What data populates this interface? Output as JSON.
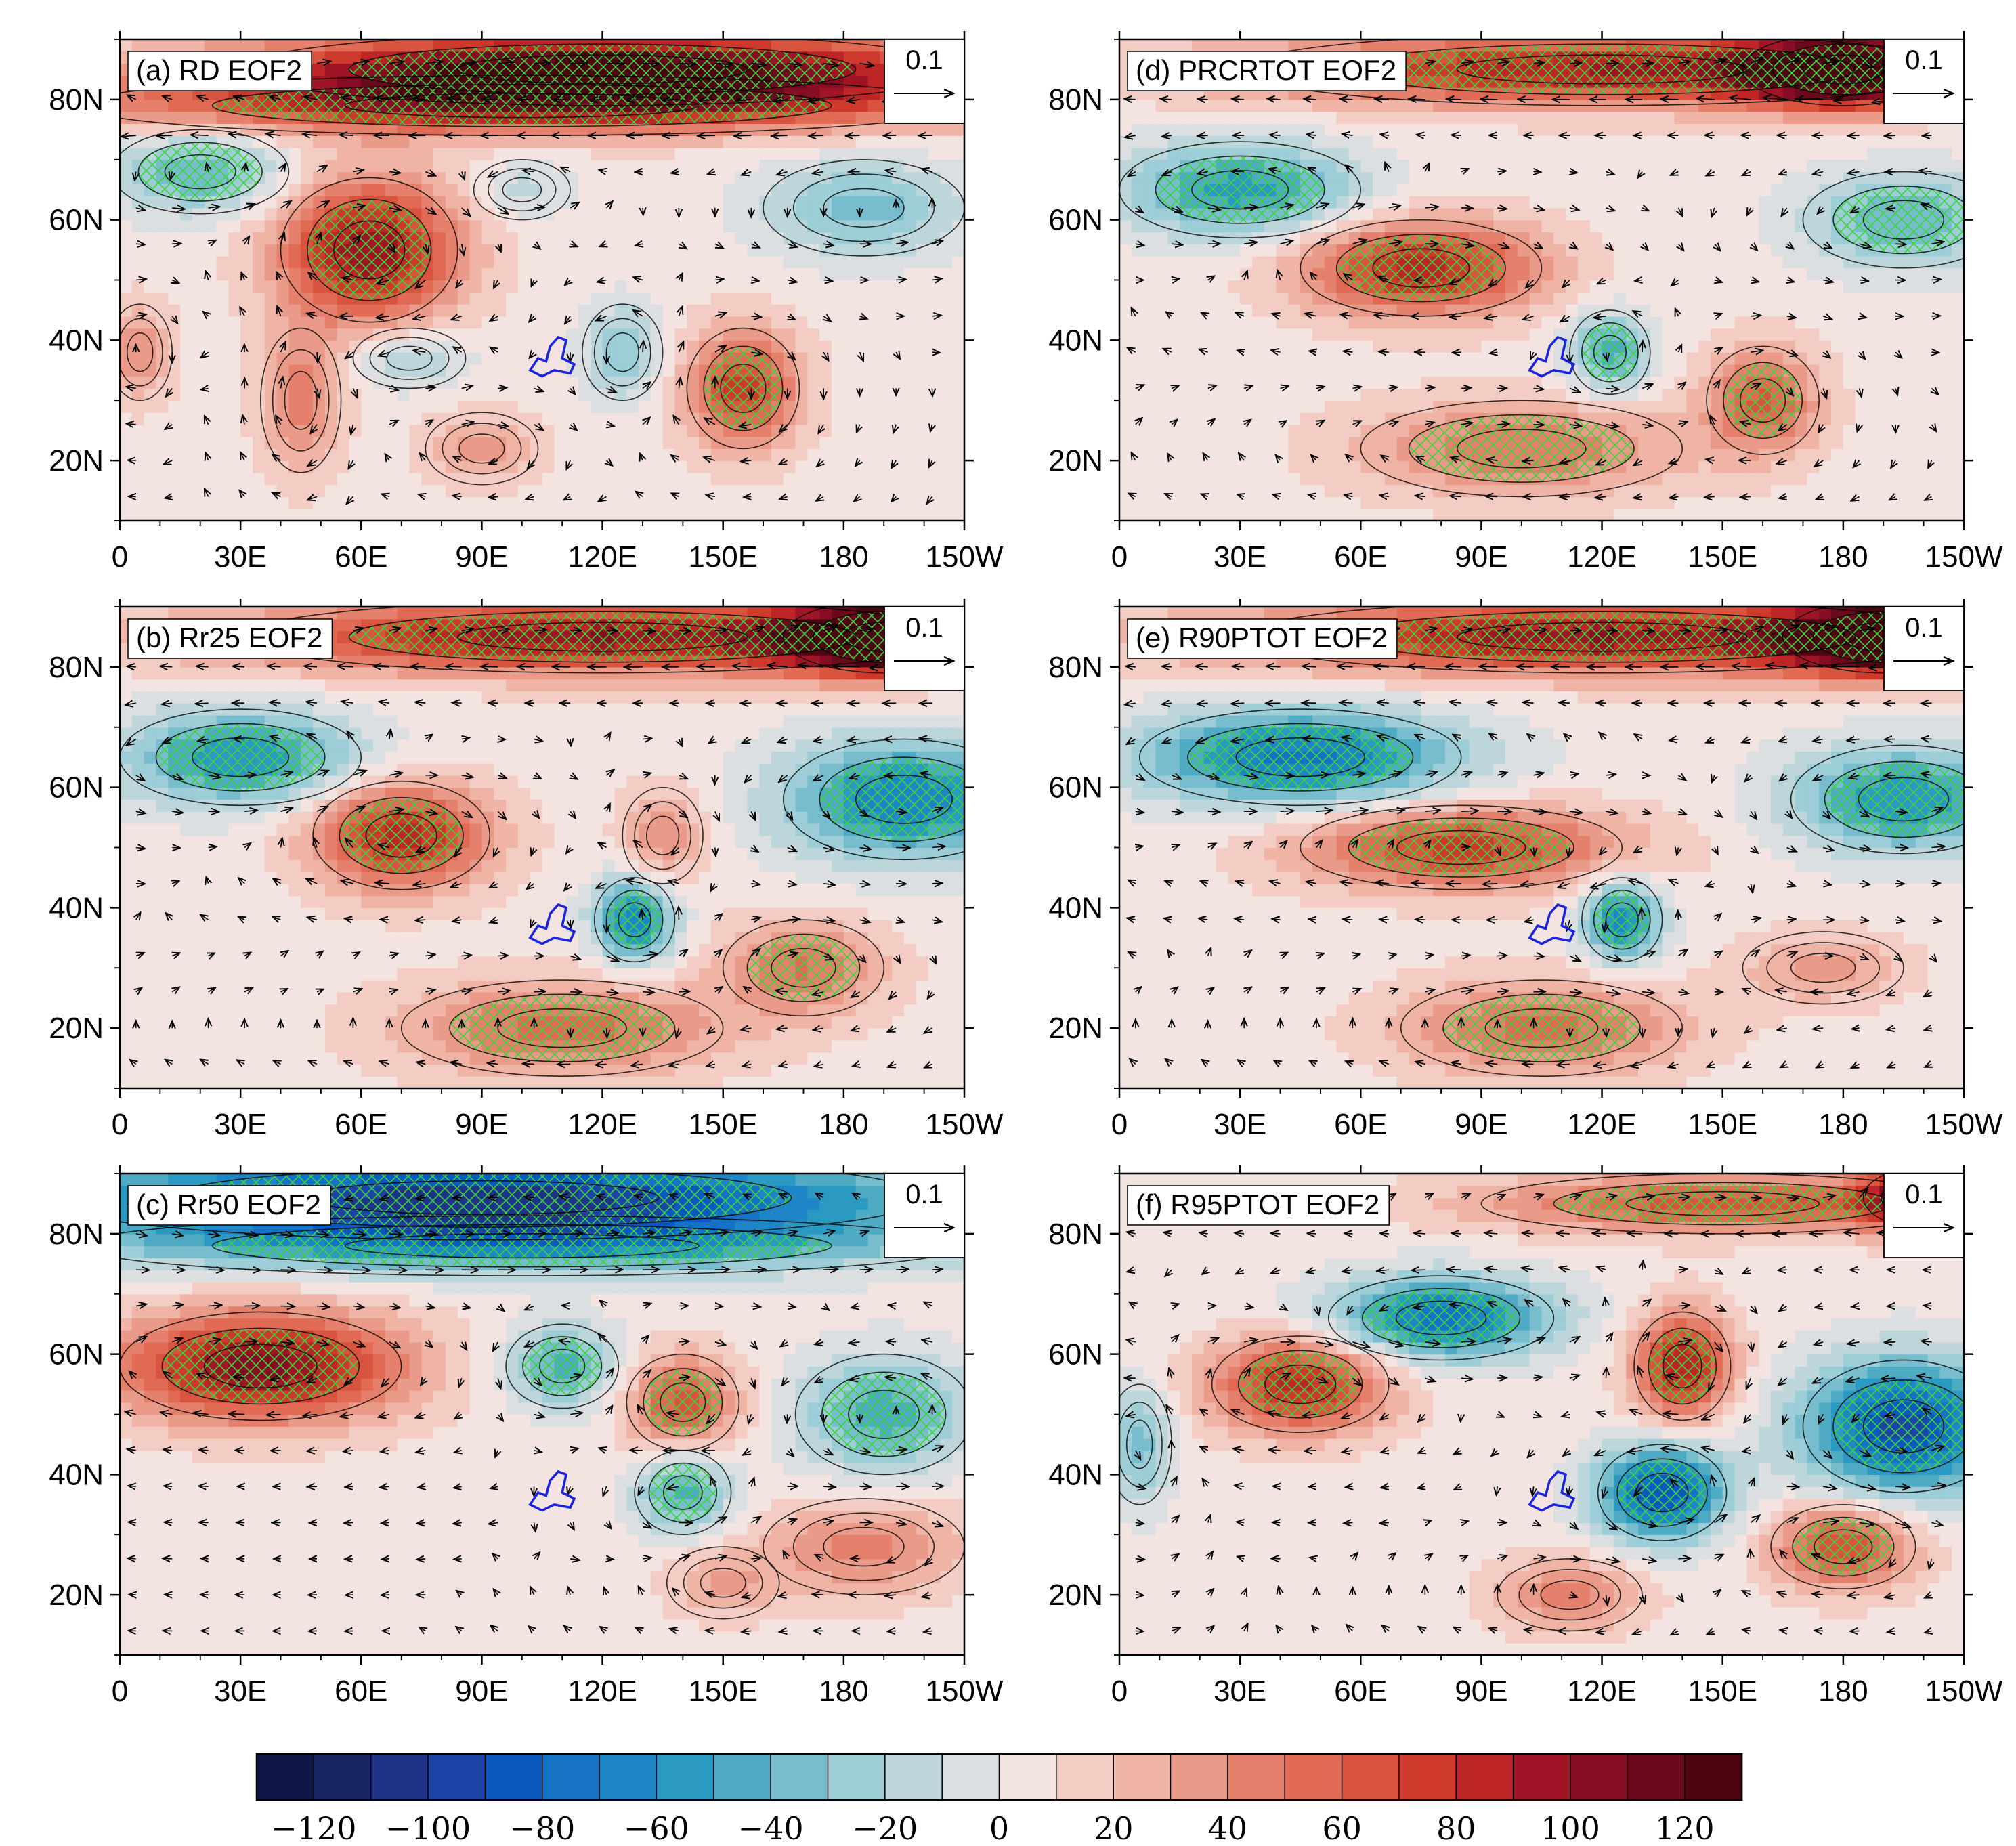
{
  "figure": {
    "description_free": true
  },
  "colorbar": {
    "levels": [
      -130,
      -120,
      -110,
      -100,
      -90,
      -80,
      -70,
      -60,
      -50,
      -40,
      -30,
      -20,
      -10,
      0,
      10,
      20,
      30,
      40,
      50,
      60,
      70,
      80,
      90,
      100,
      110,
      120,
      130
    ],
    "colors": [
      "#0f1647",
      "#1a2566",
      "#1f3388",
      "#1c44a8",
      "#0c58c1",
      "#1572c7",
      "#1e86c6",
      "#2a9ac3",
      "#4fabc4",
      "#78bdcd",
      "#9dcdd6",
      "#bdd6db",
      "#dcdfe1",
      "#f3e3e1",
      "#f3cdc4",
      "#efb4a6",
      "#ea9a88",
      "#e5806c",
      "#e06a54",
      "#d9543e",
      "#cd3a2b",
      "#bd2526",
      "#a01526",
      "#860d24",
      "#6a0a1c",
      "#4d0512"
    ],
    "tick_labels": [
      "−120",
      "−100",
      "−80",
      "−60",
      "−40",
      "−20",
      "0",
      "20",
      "40",
      "60",
      "80",
      "100",
      "120"
    ],
    "tick_values": [
      -120,
      -100,
      -80,
      -60,
      -40,
      -20,
      0,
      20,
      40,
      60,
      80,
      100,
      120
    ]
  },
  "axes": {
    "lon_ticks": [
      "0",
      "30E",
      "60E",
      "90E",
      "120E",
      "150E",
      "180",
      "150W"
    ],
    "lon_values": [
      0,
      30,
      60,
      90,
      120,
      150,
      180,
      210
    ],
    "lat_ticks": [
      "20N",
      "40N",
      "60N",
      "80N"
    ],
    "lat_values": [
      20,
      40,
      60,
      80
    ],
    "lon_range": [
      0,
      210
    ],
    "lat_range": [
      10,
      90
    ]
  },
  "chart_data": [
    {
      "type": "heatmap",
      "panel": "a",
      "title": "(a) RD EOF2",
      "ref_vector": "0.1",
      "anomalies": [
        {
          "lon": 120,
          "lat": 85,
          "value": 125,
          "r_lon": 90,
          "r_lat": 6
        },
        {
          "lon": 100,
          "lat": 79,
          "value": 70,
          "r_lon": 110,
          "r_lat": 5
        },
        {
          "lon": 20,
          "lat": 68,
          "value": -45,
          "r_lon": 22,
          "r_lat": 7
        },
        {
          "lon": 100,
          "lat": 65,
          "value": -20,
          "r_lon": 12,
          "r_lat": 5
        },
        {
          "lon": 185,
          "lat": 62,
          "value": -40,
          "r_lon": 25,
          "r_lat": 8
        },
        {
          "lon": 62,
          "lat": 55,
          "value": 95,
          "r_lon": 22,
          "r_lat": 12
        },
        {
          "lon": 45,
          "lat": 30,
          "value": 40,
          "r_lon": 10,
          "r_lat": 12
        },
        {
          "lon": 72,
          "lat": 37,
          "value": -30,
          "r_lon": 14,
          "r_lat": 5
        },
        {
          "lon": 125,
          "lat": 38,
          "value": -35,
          "r_lon": 10,
          "r_lat": 8
        },
        {
          "lon": 155,
          "lat": 32,
          "value": 70,
          "r_lon": 14,
          "r_lat": 10
        },
        {
          "lon": 90,
          "lat": 22,
          "value": 30,
          "r_lon": 14,
          "r_lat": 6
        },
        {
          "lon": 5,
          "lat": 38,
          "value": 35,
          "r_lon": 8,
          "r_lat": 8
        }
      ]
    },
    {
      "type": "heatmap",
      "panel": "b",
      "title": "(b) Rr25 EOF2",
      "ref_vector": "0.1",
      "anomalies": [
        {
          "lon": 120,
          "lat": 85,
          "value": 95,
          "r_lon": 90,
          "r_lat": 6
        },
        {
          "lon": 190,
          "lat": 85,
          "value": 130,
          "r_lon": 25,
          "r_lat": 6
        },
        {
          "lon": 30,
          "lat": 65,
          "value": -65,
          "r_lon": 30,
          "r_lat": 8
        },
        {
          "lon": 195,
          "lat": 58,
          "value": -75,
          "r_lon": 30,
          "r_lat": 10
        },
        {
          "lon": 70,
          "lat": 52,
          "value": 80,
          "r_lon": 22,
          "r_lat": 9
        },
        {
          "lon": 135,
          "lat": 52,
          "value": 35,
          "r_lon": 10,
          "r_lat": 8
        },
        {
          "lon": 128,
          "lat": 38,
          "value": -75,
          "r_lon": 10,
          "r_lat": 7
        },
        {
          "lon": 110,
          "lat": 20,
          "value": 50,
          "r_lon": 40,
          "r_lat": 8
        },
        {
          "lon": 170,
          "lat": 30,
          "value": 45,
          "r_lon": 20,
          "r_lat": 8
        }
      ]
    },
    {
      "type": "heatmap",
      "panel": "c",
      "title": "(c) Rr50 EOF2",
      "ref_vector": "0.1",
      "anomalies": [
        {
          "lon": 90,
          "lat": 86,
          "value": -110,
          "r_lon": 110,
          "r_lat": 7
        },
        {
          "lon": 100,
          "lat": 78,
          "value": -50,
          "r_lon": 110,
          "r_lat": 5
        },
        {
          "lon": 35,
          "lat": 58,
          "value": 100,
          "r_lon": 35,
          "r_lat": 9
        },
        {
          "lon": 110,
          "lat": 58,
          "value": -50,
          "r_lon": 14,
          "r_lat": 7
        },
        {
          "lon": 140,
          "lat": 52,
          "value": 60,
          "r_lon": 14,
          "r_lat": 8
        },
        {
          "lon": 190,
          "lat": 50,
          "value": -50,
          "r_lon": 22,
          "r_lat": 10
        },
        {
          "lon": 140,
          "lat": 37,
          "value": -50,
          "r_lon": 12,
          "r_lat": 7
        },
        {
          "lon": 185,
          "lat": 28,
          "value": 40,
          "r_lon": 25,
          "r_lat": 8
        },
        {
          "lon": 150,
          "lat": 22,
          "value": 25,
          "r_lon": 14,
          "r_lat": 6
        }
      ]
    },
    {
      "type": "heatmap",
      "panel": "d",
      "title": "(d) PRCRTOT EOF2",
      "ref_vector": "0.1",
      "anomalies": [
        {
          "lon": 120,
          "lat": 85,
          "value": 85,
          "r_lon": 90,
          "r_lat": 6
        },
        {
          "lon": 180,
          "lat": 85,
          "value": 125,
          "r_lon": 25,
          "r_lat": 6
        },
        {
          "lon": 30,
          "lat": 65,
          "value": -60,
          "r_lon": 30,
          "r_lat": 8
        },
        {
          "lon": 195,
          "lat": 60,
          "value": -45,
          "r_lon": 25,
          "r_lat": 8
        },
        {
          "lon": 75,
          "lat": 52,
          "value": 80,
          "r_lon": 30,
          "r_lat": 8
        },
        {
          "lon": 122,
          "lat": 38,
          "value": -50,
          "r_lon": 10,
          "r_lat": 7
        },
        {
          "lon": 100,
          "lat": 22,
          "value": 45,
          "r_lon": 40,
          "r_lat": 8
        },
        {
          "lon": 160,
          "lat": 30,
          "value": 55,
          "r_lon": 14,
          "r_lat": 9
        }
      ]
    },
    {
      "type": "heatmap",
      "panel": "e",
      "title": "(e) R90PTOT EOF2",
      "ref_vector": "0.1",
      "anomalies": [
        {
          "lon": 120,
          "lat": 85,
          "value": 95,
          "r_lon": 90,
          "r_lat": 6
        },
        {
          "lon": 190,
          "lat": 85,
          "value": 130,
          "r_lon": 25,
          "r_lat": 6
        },
        {
          "lon": 45,
          "lat": 65,
          "value": -80,
          "r_lon": 40,
          "r_lat": 8
        },
        {
          "lon": 195,
          "lat": 58,
          "value": -65,
          "r_lon": 28,
          "r_lat": 9
        },
        {
          "lon": 85,
          "lat": 50,
          "value": 70,
          "r_lon": 40,
          "r_lat": 7
        },
        {
          "lon": 125,
          "lat": 38,
          "value": -70,
          "r_lon": 10,
          "r_lat": 7
        },
        {
          "lon": 105,
          "lat": 20,
          "value": 50,
          "r_lon": 35,
          "r_lat": 8
        },
        {
          "lon": 175,
          "lat": 30,
          "value": 30,
          "r_lon": 20,
          "r_lat": 6
        }
      ]
    },
    {
      "type": "heatmap",
      "panel": "f",
      "title": "(f) R95PTOT EOF2",
      "ref_vector": "0.1",
      "anomalies": [
        {
          "lon": 150,
          "lat": 85,
          "value": 60,
          "r_lon": 60,
          "r_lat": 5
        },
        {
          "lon": 200,
          "lat": 86,
          "value": 100,
          "r_lon": 15,
          "r_lat": 5
        },
        {
          "lon": 80,
          "lat": 66,
          "value": -80,
          "r_lon": 28,
          "r_lat": 7
        },
        {
          "lon": 45,
          "lat": 55,
          "value": 80,
          "r_lon": 22,
          "r_lat": 8
        },
        {
          "lon": 140,
          "lat": 58,
          "value": 85,
          "r_lon": 12,
          "r_lat": 9
        },
        {
          "lon": 195,
          "lat": 48,
          "value": -100,
          "r_lon": 25,
          "r_lat": 11
        },
        {
          "lon": 135,
          "lat": 37,
          "value": -95,
          "r_lon": 16,
          "r_lat": 8
        },
        {
          "lon": 180,
          "lat": 28,
          "value": 65,
          "r_lon": 18,
          "r_lat": 7
        },
        {
          "lon": 112,
          "lat": 20,
          "value": 40,
          "r_lon": 18,
          "r_lat": 6
        },
        {
          "lon": 5,
          "lat": 45,
          "value": -40,
          "r_lon": 8,
          "r_lat": 10
        }
      ]
    }
  ]
}
